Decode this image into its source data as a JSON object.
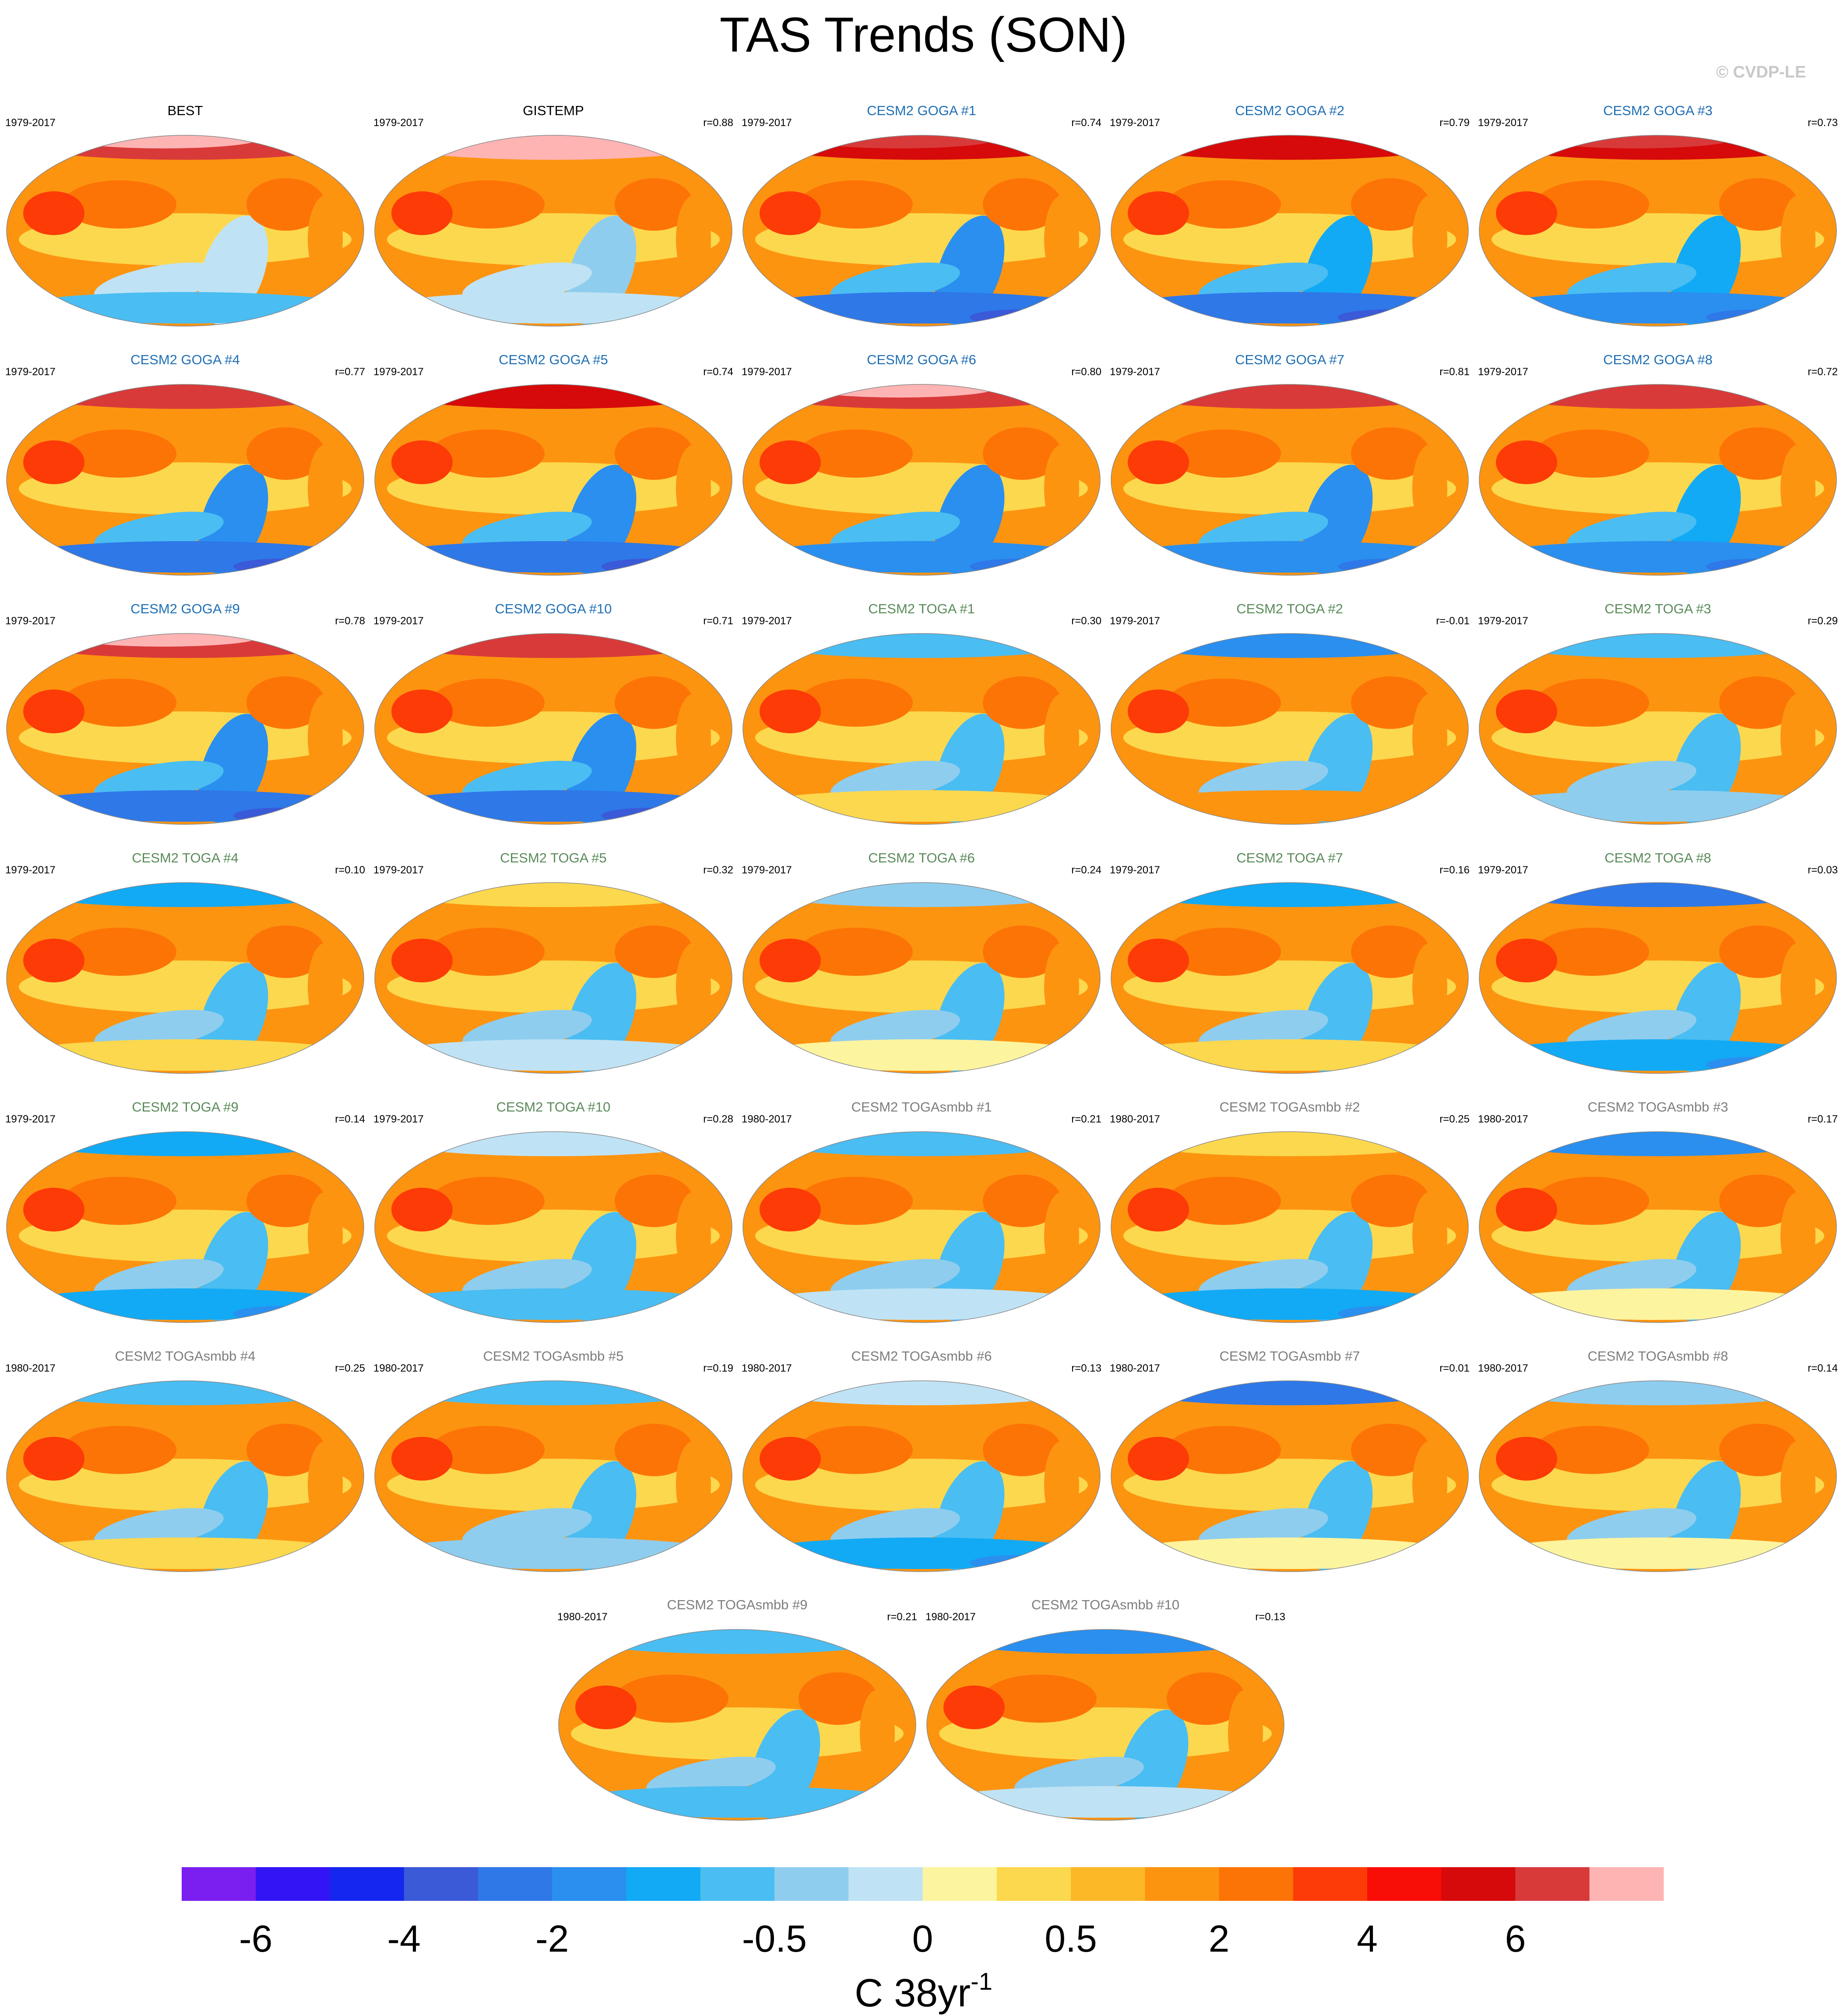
{
  "title": "TAS Trends (SON)",
  "watermark": "© CVDP-LE",
  "chart_data": {
    "type": "heatmap",
    "title": "TAS Trends (SON)",
    "projection": "robinson",
    "description_note": "",
    "panels": [
      {
        "name": "BEST",
        "years": "1979-2017",
        "corr": "",
        "title_color": "#000000",
        "group": "obs",
        "arctic": 0.85,
        "antarctic": -0.3,
        "pacific": -0.1
      },
      {
        "name": "GISTEMP",
        "years": "1979-2017",
        "corr": "r=0.88",
        "title_color": "#000000",
        "group": "obs",
        "arctic": 0.9,
        "antarctic": -0.1,
        "pacific": -0.2
      },
      {
        "name": "CESM2 GOGA #1",
        "years": "1979-2017",
        "corr": "r=0.74",
        "title_color": "#1f6fb5",
        "group": "goga",
        "arctic": 0.75,
        "antarctic": -0.6,
        "pacific": -0.5
      },
      {
        "name": "CESM2 GOGA #2",
        "years": "1979-2017",
        "corr": "r=0.79",
        "title_color": "#1f6fb5",
        "group": "goga",
        "arctic": 0.7,
        "antarctic": -0.6,
        "pacific": -0.4
      },
      {
        "name": "CESM2 GOGA #3",
        "years": "1979-2017",
        "corr": "r=0.73",
        "title_color": "#1f6fb5",
        "group": "goga",
        "arctic": 0.75,
        "antarctic": -0.5,
        "pacific": -0.4
      },
      {
        "name": "CESM2 GOGA #4",
        "years": "1979-2017",
        "corr": "r=0.77",
        "title_color": "#1f6fb5",
        "group": "goga",
        "arctic": 0.8,
        "antarctic": -0.6,
        "pacific": -0.5
      },
      {
        "name": "CESM2 GOGA #5",
        "years": "1979-2017",
        "corr": "r=0.74",
        "title_color": "#1f6fb5",
        "group": "goga",
        "arctic": 0.7,
        "antarctic": -0.6,
        "pacific": -0.5
      },
      {
        "name": "CESM2 GOGA #6",
        "years": "1979-2017",
        "corr": "r=0.80",
        "title_color": "#1f6fb5",
        "group": "goga",
        "arctic": 0.85,
        "antarctic": -0.5,
        "pacific": -0.5
      },
      {
        "name": "CESM2 GOGA #7",
        "years": "1979-2017",
        "corr": "r=0.81",
        "title_color": "#1f6fb5",
        "group": "goga",
        "arctic": 0.8,
        "antarctic": -0.5,
        "pacific": -0.5
      },
      {
        "name": "CESM2 GOGA #8",
        "years": "1979-2017",
        "corr": "r=0.72",
        "title_color": "#1f6fb5",
        "group": "goga",
        "arctic": 0.8,
        "antarctic": -0.5,
        "pacific": -0.4
      },
      {
        "name": "CESM2 GOGA #9",
        "years": "1979-2017",
        "corr": "r=0.78",
        "title_color": "#1f6fb5",
        "group": "goga",
        "arctic": 0.85,
        "antarctic": -0.6,
        "pacific": -0.5
      },
      {
        "name": "CESM2 GOGA #10",
        "years": "1979-2017",
        "corr": "r=0.71",
        "title_color": "#1f6fb5",
        "group": "goga",
        "arctic": 0.8,
        "antarctic": -0.6,
        "pacific": -0.5
      },
      {
        "name": "CESM2 TOGA #1",
        "years": "1979-2017",
        "corr": "r=0.30",
        "title_color": "#5a8a5a",
        "group": "toga",
        "arctic": -0.3,
        "antarctic": 0.1,
        "pacific": -0.3
      },
      {
        "name": "CESM2 TOGA #2",
        "years": "1979-2017",
        "corr": "r=-0.01",
        "title_color": "#5a8a5a",
        "group": "toga",
        "arctic": -0.5,
        "antarctic": 0.3,
        "pacific": -0.3
      },
      {
        "name": "CESM2 TOGA #3",
        "years": "1979-2017",
        "corr": "r=0.29",
        "title_color": "#5a8a5a",
        "group": "toga",
        "arctic": -0.3,
        "antarctic": -0.2,
        "pacific": -0.3
      },
      {
        "name": "CESM2 TOGA #4",
        "years": "1979-2017",
        "corr": "r=0.10",
        "title_color": "#5a8a5a",
        "group": "toga",
        "arctic": -0.4,
        "antarctic": 0.1,
        "pacific": -0.3
      },
      {
        "name": "CESM2 TOGA #5",
        "years": "1979-2017",
        "corr": "r=0.32",
        "title_color": "#5a8a5a",
        "group": "toga",
        "arctic": 0.1,
        "antarctic": -0.1,
        "pacific": -0.3
      },
      {
        "name": "CESM2 TOGA #6",
        "years": "1979-2017",
        "corr": "r=0.24",
        "title_color": "#5a8a5a",
        "group": "toga",
        "arctic": -0.2,
        "antarctic": 0.0,
        "pacific": -0.3
      },
      {
        "name": "CESM2 TOGA #7",
        "years": "1979-2017",
        "corr": "r=0.16",
        "title_color": "#5a8a5a",
        "group": "toga",
        "arctic": -0.4,
        "antarctic": 0.1,
        "pacific": -0.3
      },
      {
        "name": "CESM2 TOGA #8",
        "years": "1979-2017",
        "corr": "r=0.03",
        "title_color": "#5a8a5a",
        "group": "toga",
        "arctic": -0.6,
        "antarctic": -0.4,
        "pacific": -0.3
      },
      {
        "name": "CESM2 TOGA #9",
        "years": "1979-2017",
        "corr": "r=0.14",
        "title_color": "#5a8a5a",
        "group": "toga",
        "arctic": -0.4,
        "antarctic": -0.4,
        "pacific": -0.3
      },
      {
        "name": "CESM2 TOGA #10",
        "years": "1979-2017",
        "corr": "r=0.28",
        "title_color": "#5a8a5a",
        "group": "toga",
        "arctic": -0.1,
        "antarctic": -0.3,
        "pacific": -0.3
      },
      {
        "name": "CESM2 TOGAsmbb #1",
        "years": "1980-2017",
        "corr": "r=0.21",
        "title_color": "#7d7d7d",
        "group": "smbb",
        "arctic": -0.3,
        "antarctic": -0.1,
        "pacific": -0.3
      },
      {
        "name": "CESM2 TOGAsmbb #2",
        "years": "1980-2017",
        "corr": "r=0.25",
        "title_color": "#7d7d7d",
        "group": "smbb",
        "arctic": 0.1,
        "antarctic": -0.4,
        "pacific": -0.3
      },
      {
        "name": "CESM2 TOGAsmbb #3",
        "years": "1980-2017",
        "corr": "r=0.17",
        "title_color": "#7d7d7d",
        "group": "smbb",
        "arctic": -0.5,
        "antarctic": 0.0,
        "pacific": -0.3
      },
      {
        "name": "CESM2 TOGAsmbb #4",
        "years": "1980-2017",
        "corr": "r=0.25",
        "title_color": "#7d7d7d",
        "group": "smbb",
        "arctic": -0.3,
        "antarctic": 0.1,
        "pacific": -0.3
      },
      {
        "name": "CESM2 TOGAsmbb #5",
        "years": "1980-2017",
        "corr": "r=0.19",
        "title_color": "#7d7d7d",
        "group": "smbb",
        "arctic": -0.3,
        "antarctic": -0.2,
        "pacific": -0.3
      },
      {
        "name": "CESM2 TOGAsmbb #6",
        "years": "1980-2017",
        "corr": "r=0.13",
        "title_color": "#7d7d7d",
        "group": "smbb",
        "arctic": -0.1,
        "antarctic": -0.4,
        "pacific": -0.3
      },
      {
        "name": "CESM2 TOGAsmbb #7",
        "years": "1980-2017",
        "corr": "r=0.01",
        "title_color": "#7d7d7d",
        "group": "smbb",
        "arctic": -0.6,
        "antarctic": 0.0,
        "pacific": -0.3
      },
      {
        "name": "CESM2 TOGAsmbb #8",
        "years": "1980-2017",
        "corr": "r=0.14",
        "title_color": "#7d7d7d",
        "group": "smbb",
        "arctic": -0.2,
        "antarctic": 0.0,
        "pacific": -0.3
      },
      {
        "name": "CESM2 TOGAsmbb #9",
        "years": "1980-2017",
        "corr": "r=0.21",
        "title_color": "#7d7d7d",
        "group": "smbb",
        "arctic": -0.3,
        "antarctic": -0.3,
        "pacific": -0.3
      },
      {
        "name": "CESM2 TOGAsmbb #10",
        "years": "1980-2017",
        "corr": "r=0.13",
        "title_color": "#7d7d7d",
        "group": "smbb",
        "arctic": -0.5,
        "antarctic": -0.1,
        "pacific": -0.3
      }
    ],
    "colorbar": {
      "colors": [
        "#7a1ff0",
        "#3314f5",
        "#1527ee",
        "#3a5ad8",
        "#2e78e8",
        "#2a8fef",
        "#12aaf5",
        "#4abdf2",
        "#8fcdee",
        "#bfe3f5",
        "#fdf4a0",
        "#fcd84e",
        "#fdb828",
        "#fd9410",
        "#fd7406",
        "#fd3b06",
        "#f80e06",
        "#d60a0a",
        "#d83a3a",
        "#ffb4b4"
      ],
      "tick_labels": [
        "-6",
        "-4",
        "-2",
        "-0.5",
        "0",
        "0.5",
        "2",
        "4",
        "6"
      ],
      "tick_boundaries": [
        1,
        3,
        5,
        8,
        10,
        12,
        14,
        16,
        18
      ],
      "units_base": "C 38yr",
      "units_sup": "-1"
    }
  }
}
